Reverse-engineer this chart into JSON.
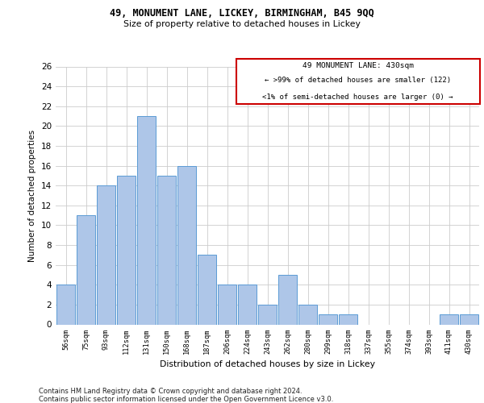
{
  "title_line1": "49, MONUMENT LANE, LICKEY, BIRMINGHAM, B45 9QQ",
  "title_line2": "Size of property relative to detached houses in Lickey",
  "xlabel": "Distribution of detached houses by size in Lickey",
  "ylabel": "Number of detached properties",
  "categories": [
    "56sqm",
    "75sqm",
    "93sqm",
    "112sqm",
    "131sqm",
    "150sqm",
    "168sqm",
    "187sqm",
    "206sqm",
    "224sqm",
    "243sqm",
    "262sqm",
    "280sqm",
    "299sqm",
    "318sqm",
    "337sqm",
    "355sqm",
    "374sqm",
    "393sqm",
    "411sqm",
    "430sqm"
  ],
  "values": [
    4,
    11,
    14,
    15,
    21,
    15,
    16,
    7,
    4,
    4,
    2,
    5,
    2,
    1,
    1,
    0,
    0,
    0,
    0,
    1,
    1
  ],
  "bar_color": "#aec6e8",
  "bar_edge_color": "#5b9bd5",
  "grid_color": "#cccccc",
  "annotation_text_line1": "49 MONUMENT LANE: 430sqm",
  "annotation_text_line2": "← >99% of detached houses are smaller (122)",
  "annotation_text_line3": "<1% of semi-detached houses are larger (0) →",
  "annotation_box_edgecolor": "#cc0000",
  "ylim": [
    0,
    26
  ],
  "yticks": [
    0,
    2,
    4,
    6,
    8,
    10,
    12,
    14,
    16,
    18,
    20,
    22,
    24,
    26
  ],
  "footer_line1": "Contains HM Land Registry data © Crown copyright and database right 2024.",
  "footer_line2": "Contains public sector information licensed under the Open Government Licence v3.0."
}
